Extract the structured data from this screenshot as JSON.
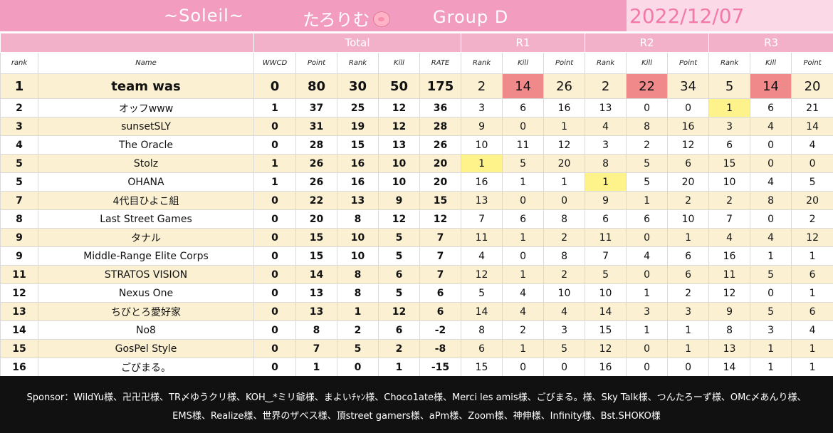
{
  "header": {
    "brand": "~Soleil~",
    "player": "たろりむ",
    "group": "Group D",
    "date": "2022/12/07",
    "colors": {
      "header_pink": "#f29dc0",
      "date_bg": "#fbd9e6",
      "group_bar": "#f3b1c9",
      "alt_row": "#fbf0d2",
      "winner_yellow": "#fdf38a",
      "top_kill_red": "#f08a8a"
    }
  },
  "groups": {
    "total": "Total",
    "r1": "R1",
    "r2": "R2",
    "r3": "R3"
  },
  "columns": [
    "rank",
    "Name",
    "WWCD",
    "Point",
    "Rank",
    "Kill",
    "RATE",
    "Rank",
    "Kill",
    "Point",
    "Rank",
    "Kill",
    "Point",
    "Rank",
    "Kill",
    "Point"
  ],
  "rows": [
    {
      "rank": "1",
      "name": "team was",
      "wwcd": "0",
      "point": "80",
      "trank": "30",
      "kill": "50",
      "rate": "175",
      "r1": [
        "2",
        "14",
        "26"
      ],
      "r2": [
        "2",
        "22",
        "34"
      ],
      "r3": [
        "5",
        "14",
        "20"
      ]
    },
    {
      "rank": "2",
      "name": "オッフwww",
      "wwcd": "1",
      "point": "37",
      "trank": "25",
      "kill": "12",
      "rate": "36",
      "r1": [
        "3",
        "6",
        "16"
      ],
      "r2": [
        "13",
        "0",
        "0"
      ],
      "r3": [
        "1",
        "6",
        "21"
      ]
    },
    {
      "rank": "3",
      "name": "sunsetSLY",
      "wwcd": "0",
      "point": "31",
      "trank": "19",
      "kill": "12",
      "rate": "28",
      "r1": [
        "9",
        "0",
        "1"
      ],
      "r2": [
        "4",
        "8",
        "16"
      ],
      "r3": [
        "3",
        "4",
        "14"
      ]
    },
    {
      "rank": "4",
      "name": "The Oracle",
      "wwcd": "0",
      "point": "28",
      "trank": "15",
      "kill": "13",
      "rate": "26",
      "r1": [
        "10",
        "11",
        "12"
      ],
      "r2": [
        "3",
        "2",
        "12"
      ],
      "r3": [
        "6",
        "0",
        "4"
      ]
    },
    {
      "rank": "5",
      "name": "Stolz",
      "wwcd": "1",
      "point": "26",
      "trank": "16",
      "kill": "10",
      "rate": "20",
      "r1": [
        "1",
        "5",
        "20"
      ],
      "r2": [
        "8",
        "5",
        "6"
      ],
      "r3": [
        "15",
        "0",
        "0"
      ]
    },
    {
      "rank": "5",
      "name": "OHANA",
      "wwcd": "1",
      "point": "26",
      "trank": "16",
      "kill": "10",
      "rate": "20",
      "r1": [
        "16",
        "1",
        "1"
      ],
      "r2": [
        "1",
        "5",
        "20"
      ],
      "r3": [
        "10",
        "4",
        "5"
      ]
    },
    {
      "rank": "7",
      "name": "4代目ひよこ組",
      "wwcd": "0",
      "point": "22",
      "trank": "13",
      "kill": "9",
      "rate": "15",
      "r1": [
        "13",
        "0",
        "0"
      ],
      "r2": [
        "9",
        "1",
        "2"
      ],
      "r3": [
        "2",
        "8",
        "20"
      ]
    },
    {
      "rank": "8",
      "name": "Last Street Games",
      "wwcd": "0",
      "point": "20",
      "trank": "8",
      "kill": "12",
      "rate": "12",
      "r1": [
        "7",
        "6",
        "8"
      ],
      "r2": [
        "6",
        "6",
        "10"
      ],
      "r3": [
        "7",
        "0",
        "2"
      ]
    },
    {
      "rank": "9",
      "name": "タナル",
      "wwcd": "0",
      "point": "15",
      "trank": "10",
      "kill": "5",
      "rate": "7",
      "r1": [
        "11",
        "1",
        "2"
      ],
      "r2": [
        "11",
        "0",
        "1"
      ],
      "r3": [
        "4",
        "4",
        "12"
      ]
    },
    {
      "rank": "9",
      "name": "Middle-Range Elite Corps",
      "wwcd": "0",
      "point": "15",
      "trank": "10",
      "kill": "5",
      "rate": "7",
      "r1": [
        "4",
        "0",
        "8"
      ],
      "r2": [
        "7",
        "4",
        "6"
      ],
      "r3": [
        "16",
        "1",
        "1"
      ]
    },
    {
      "rank": "11",
      "name": "STRATOS VISION",
      "wwcd": "0",
      "point": "14",
      "trank": "8",
      "kill": "6",
      "rate": "7",
      "r1": [
        "12",
        "1",
        "2"
      ],
      "r2": [
        "5",
        "0",
        "6"
      ],
      "r3": [
        "11",
        "5",
        "6"
      ]
    },
    {
      "rank": "12",
      "name": "Nexus One",
      "wwcd": "0",
      "point": "13",
      "trank": "8",
      "kill": "5",
      "rate": "6",
      "r1": [
        "5",
        "4",
        "10"
      ],
      "r2": [
        "10",
        "1",
        "2"
      ],
      "r3": [
        "12",
        "0",
        "1"
      ]
    },
    {
      "rank": "13",
      "name": "ちびとろ愛好家",
      "wwcd": "0",
      "point": "13",
      "trank": "1",
      "kill": "12",
      "rate": "6",
      "r1": [
        "14",
        "4",
        "4"
      ],
      "r2": [
        "14",
        "3",
        "3"
      ],
      "r3": [
        "9",
        "5",
        "6"
      ]
    },
    {
      "rank": "14",
      "name": "No8",
      "wwcd": "0",
      "point": "8",
      "trank": "2",
      "kill": "6",
      "rate": "-2",
      "r1": [
        "8",
        "2",
        "3"
      ],
      "r2": [
        "15",
        "1",
        "1"
      ],
      "r3": [
        "8",
        "3",
        "4"
      ]
    },
    {
      "rank": "15",
      "name": "GosPel Style",
      "wwcd": "0",
      "point": "7",
      "trank": "5",
      "kill": "2",
      "rate": "-8",
      "r1": [
        "6",
        "1",
        "5"
      ],
      "r2": [
        "12",
        "0",
        "1"
      ],
      "r3": [
        "13",
        "1",
        "1"
      ]
    },
    {
      "rank": "16",
      "name": "ごびまる。",
      "wwcd": "0",
      "point": "1",
      "trank": "0",
      "kill": "1",
      "rate": "-15",
      "r1": [
        "15",
        "0",
        "0"
      ],
      "r2": [
        "16",
        "0",
        "0"
      ],
      "r3": [
        "14",
        "1",
        "1"
      ]
    }
  ],
  "footer": {
    "line1": "Sponsor：WildYu様、卍卍卍様、TR〆ゆうクリ様、KOH‿*ミリ爺様、まよいﾁｬﾝ様、Choco1ate様、Merci les amis様、ごびまる。様、Sky Talk様、つんたろーず様、OMc〆あんり様、",
    "line2": "EMS様、Realize様、世界のザベス様、頂street gamers様、aPm様、Zoom様、神伸様、Infinity様、Bst.SHOKO様"
  }
}
